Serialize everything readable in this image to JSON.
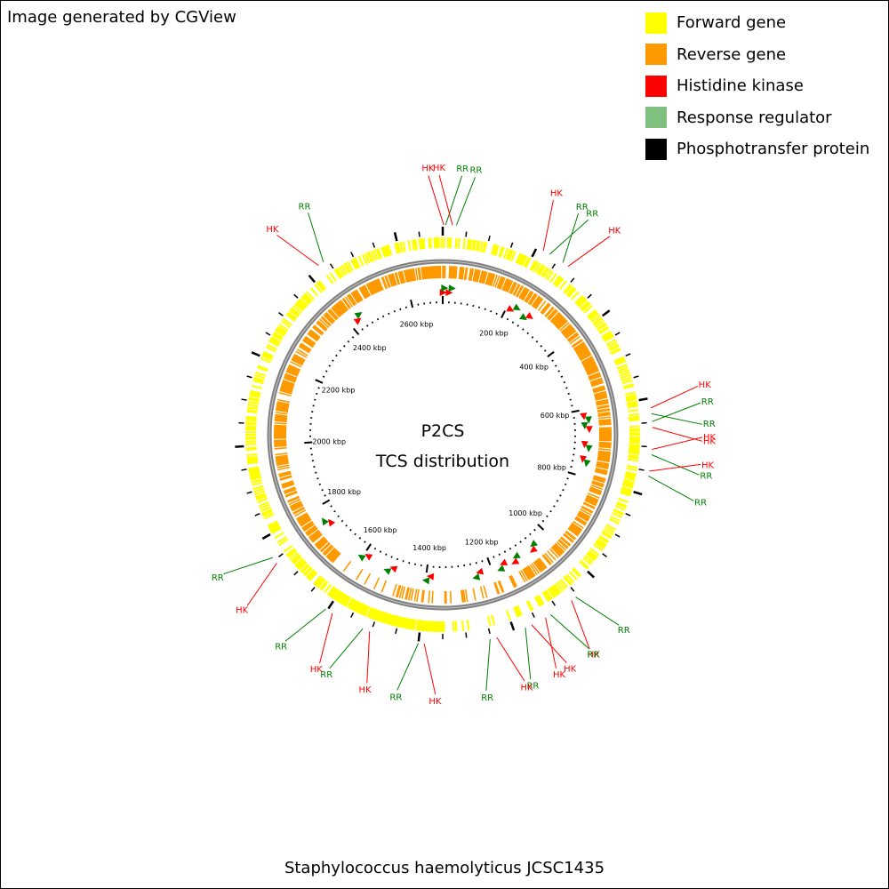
{
  "credit": "Image generated by CGView",
  "organism": "Staphylococcus haemolyticus JCSC1435",
  "center_title": "P2CS",
  "center_subtitle": "TCS distribution",
  "genome_length_kbp": 2700,
  "legend": [
    {
      "label": "Forward gene",
      "color": "#ffff00"
    },
    {
      "label": "Reverse gene",
      "color": "#ff9900"
    },
    {
      "label": "Histidine kinase",
      "color": "#ff0000"
    },
    {
      "label": "Response regulator",
      "color": "#7fbf7f"
    },
    {
      "label": "Phosphotransfer protein",
      "color": "#000000"
    }
  ],
  "colors": {
    "forward": "#ffff00",
    "reverse": "#ff9900",
    "hk": "#ff0000",
    "rr": "#008000",
    "backbone": "#808080"
  },
  "kbp_labels": [
    "200 kbp",
    "400 kbp",
    "600 kbp",
    "800 kbp",
    "1000 kbp",
    "1200 kbp",
    "1400 kbp",
    "1600 kbp",
    "1800 kbp",
    "2000 kbp",
    "2200 kbp",
    "2400 kbp",
    "2600 kbp"
  ],
  "tcs_features": [
    {
      "kbp": 2,
      "type": "HK"
    },
    {
      "kbp": 6,
      "type": "RR"
    },
    {
      "kbp": 20,
      "type": "HK"
    },
    {
      "kbp": 28,
      "type": "RR"
    },
    {
      "kbp": 215,
      "type": "HK"
    },
    {
      "kbp": 230,
      "type": "RR"
    },
    {
      "kbp": 262,
      "type": "RR"
    },
    {
      "kbp": 275,
      "type": "HK"
    },
    {
      "kbp": 620,
      "type": "HK"
    },
    {
      "kbp": 632,
      "type": "RR"
    },
    {
      "kbp": 648,
      "type": "RR"
    },
    {
      "kbp": 660,
      "type": "HK"
    },
    {
      "kbp": 705,
      "type": "HK"
    },
    {
      "kbp": 716,
      "type": "RR"
    },
    {
      "kbp": 750,
      "type": "HK"
    },
    {
      "kbp": 760,
      "type": "RR"
    },
    {
      "kbp": 1055,
      "type": "RR"
    },
    {
      "kbp": 1066,
      "type": "HK"
    },
    {
      "kbp": 1118,
      "type": "RR"
    },
    {
      "kbp": 1130,
      "type": "HK"
    },
    {
      "kbp": 1162,
      "type": "HK"
    },
    {
      "kbp": 1176,
      "type": "RR"
    },
    {
      "kbp": 1238,
      "type": "HK"
    },
    {
      "kbp": 1252,
      "type": "RR"
    },
    {
      "kbp": 1388,
      "type": "HK"
    },
    {
      "kbp": 1400,
      "type": "RR"
    },
    {
      "kbp": 1503,
      "type": "HK"
    },
    {
      "kbp": 1518,
      "type": "RR"
    },
    {
      "kbp": 1588,
      "type": "HK"
    },
    {
      "kbp": 1604,
      "type": "RR"
    },
    {
      "kbp": 1742,
      "type": "HK"
    },
    {
      "kbp": 1756,
      "type": "RR"
    },
    {
      "kbp": 2428,
      "type": "HK"
    },
    {
      "kbp": 2440,
      "type": "RR"
    }
  ]
}
